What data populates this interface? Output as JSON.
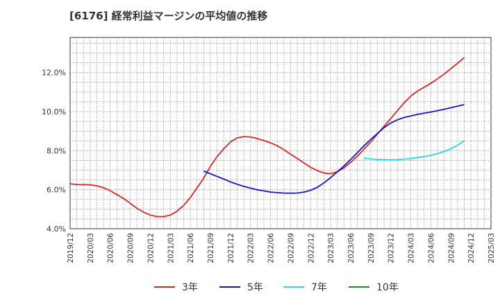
{
  "title": "[6176]  経常利益マージンの平均値の推移",
  "chart_data": {
    "type": "line",
    "title": "[6176]  経常利益マージンの平均値の推移",
    "xlabel": "",
    "ylabel": "",
    "ylim": [
      4.0,
      13.8
    ],
    "yticks": [
      4.0,
      6.0,
      8.0,
      10.0,
      12.0
    ],
    "ytick_labels": [
      "4.0%",
      "6.0%",
      "8.0%",
      "10.0%",
      "12.0%"
    ],
    "xticks": [
      "2019/12",
      "2020/03",
      "2020/06",
      "2020/09",
      "2020/12",
      "2021/03",
      "2021/06",
      "2021/09",
      "2021/12",
      "2022/03",
      "2022/06",
      "2022/09",
      "2022/12",
      "2023/03",
      "2023/06",
      "2023/09",
      "2023/12",
      "2024/03",
      "2024/06",
      "2024/09",
      "2024/12",
      "2025/03"
    ],
    "legend_position": "bottom",
    "grid": true,
    "series": [
      {
        "name": "3年",
        "color": "#dd2222",
        "points": [
          [
            "2019/12",
            6.3
          ],
          [
            "2020/01",
            6.27
          ],
          [
            "2020/02",
            6.26
          ],
          [
            "2020/03",
            6.25
          ],
          [
            "2020/04",
            6.2
          ],
          [
            "2020/05",
            6.1
          ],
          [
            "2020/06",
            5.95
          ],
          [
            "2020/07",
            5.75
          ],
          [
            "2020/08",
            5.55
          ],
          [
            "2020/09",
            5.3
          ],
          [
            "2020/10",
            5.05
          ],
          [
            "2020/11",
            4.85
          ],
          [
            "2020/12",
            4.7
          ],
          [
            "2021/01",
            4.62
          ],
          [
            "2021/02",
            4.62
          ],
          [
            "2021/03",
            4.7
          ],
          [
            "2021/04",
            4.9
          ],
          [
            "2021/05",
            5.2
          ],
          [
            "2021/06",
            5.6
          ],
          [
            "2021/07",
            6.1
          ],
          [
            "2021/08",
            6.6
          ],
          [
            "2021/09",
            7.2
          ],
          [
            "2021/10",
            7.7
          ],
          [
            "2021/11",
            8.1
          ],
          [
            "2021/12",
            8.45
          ],
          [
            "2022/01",
            8.65
          ],
          [
            "2022/02",
            8.72
          ],
          [
            "2022/03",
            8.7
          ],
          [
            "2022/04",
            8.62
          ],
          [
            "2022/05",
            8.52
          ],
          [
            "2022/06",
            8.4
          ],
          [
            "2022/07",
            8.25
          ],
          [
            "2022/08",
            8.05
          ],
          [
            "2022/09",
            7.82
          ],
          [
            "2022/10",
            7.6
          ],
          [
            "2022/11",
            7.37
          ],
          [
            "2022/12",
            7.15
          ],
          [
            "2023/01",
            6.98
          ],
          [
            "2023/02",
            6.85
          ],
          [
            "2023/03",
            6.82
          ],
          [
            "2023/04",
            6.92
          ],
          [
            "2023/05",
            7.12
          ],
          [
            "2023/06",
            7.4
          ],
          [
            "2023/07",
            7.72
          ],
          [
            "2023/08",
            8.08
          ],
          [
            "2023/09",
            8.45
          ],
          [
            "2023/10",
            8.85
          ],
          [
            "2023/11",
            9.25
          ],
          [
            "2023/12",
            9.65
          ],
          [
            "2024/01",
            10.05
          ],
          [
            "2024/02",
            10.45
          ],
          [
            "2024/03",
            10.8
          ],
          [
            "2024/04",
            11.05
          ],
          [
            "2024/05",
            11.25
          ],
          [
            "2024/06",
            11.45
          ],
          [
            "2024/07",
            11.68
          ],
          [
            "2024/08",
            11.93
          ],
          [
            "2024/09",
            12.2
          ],
          [
            "2024/10",
            12.48
          ],
          [
            "2024/11",
            12.77
          ]
        ]
      },
      {
        "name": "5年",
        "color": "#1111cc",
        "points": [
          [
            "2021/08",
            6.95
          ],
          [
            "2021/09",
            6.82
          ],
          [
            "2021/10",
            6.68
          ],
          [
            "2021/11",
            6.55
          ],
          [
            "2021/12",
            6.4
          ],
          [
            "2022/01",
            6.28
          ],
          [
            "2022/02",
            6.17
          ],
          [
            "2022/03",
            6.08
          ],
          [
            "2022/04",
            6.0
          ],
          [
            "2022/05",
            5.94
          ],
          [
            "2022/06",
            5.88
          ],
          [
            "2022/07",
            5.85
          ],
          [
            "2022/08",
            5.83
          ],
          [
            "2022/09",
            5.82
          ],
          [
            "2022/10",
            5.83
          ],
          [
            "2022/11",
            5.88
          ],
          [
            "2022/12",
            5.97
          ],
          [
            "2023/01",
            6.12
          ],
          [
            "2023/02",
            6.35
          ],
          [
            "2023/03",
            6.62
          ],
          [
            "2023/04",
            6.92
          ],
          [
            "2023/05",
            7.22
          ],
          [
            "2023/06",
            7.55
          ],
          [
            "2023/07",
            7.9
          ],
          [
            "2023/08",
            8.25
          ],
          [
            "2023/09",
            8.58
          ],
          [
            "2023/10",
            8.88
          ],
          [
            "2023/11",
            9.18
          ],
          [
            "2023/12",
            9.42
          ],
          [
            "2024/01",
            9.58
          ],
          [
            "2024/02",
            9.7
          ],
          [
            "2024/03",
            9.78
          ],
          [
            "2024/04",
            9.86
          ],
          [
            "2024/05",
            9.92
          ],
          [
            "2024/06",
            9.98
          ],
          [
            "2024/07",
            10.05
          ],
          [
            "2024/08",
            10.12
          ],
          [
            "2024/09",
            10.2
          ],
          [
            "2024/10",
            10.28
          ],
          [
            "2024/11",
            10.36
          ]
        ]
      },
      {
        "name": "7年",
        "color": "#22dddd",
        "points": [
          [
            "2023/08",
            7.62
          ],
          [
            "2023/09",
            7.58
          ],
          [
            "2023/10",
            7.55
          ],
          [
            "2023/11",
            7.54
          ],
          [
            "2023/12",
            7.53
          ],
          [
            "2024/01",
            7.54
          ],
          [
            "2024/02",
            7.57
          ],
          [
            "2024/03",
            7.6
          ],
          [
            "2024/04",
            7.65
          ],
          [
            "2024/05",
            7.7
          ],
          [
            "2024/06",
            7.76
          ],
          [
            "2024/07",
            7.85
          ],
          [
            "2024/08",
            7.96
          ],
          [
            "2024/09",
            8.1
          ],
          [
            "2024/10",
            8.28
          ],
          [
            "2024/11",
            8.52
          ]
        ]
      },
      {
        "name": "10年",
        "color": "#228822",
        "points": []
      }
    ]
  }
}
